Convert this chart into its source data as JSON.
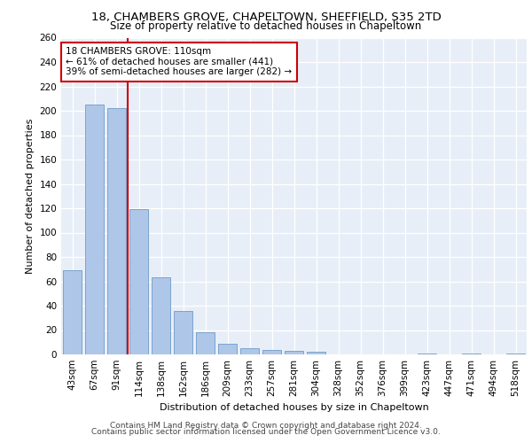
{
  "title_line1": "18, CHAMBERS GROVE, CHAPELTOWN, SHEFFIELD, S35 2TD",
  "title_line2": "Size of property relative to detached houses in Chapeltown",
  "xlabel": "Distribution of detached houses by size in Chapeltown",
  "ylabel": "Number of detached properties",
  "categories": [
    "43sqm",
    "67sqm",
    "91sqm",
    "114sqm",
    "138sqm",
    "162sqm",
    "186sqm",
    "209sqm",
    "233sqm",
    "257sqm",
    "281sqm",
    "304sqm",
    "328sqm",
    "352sqm",
    "376sqm",
    "399sqm",
    "423sqm",
    "447sqm",
    "471sqm",
    "494sqm",
    "518sqm"
  ],
  "values": [
    69,
    205,
    202,
    119,
    63,
    36,
    18,
    9,
    5,
    4,
    3,
    2,
    0,
    0,
    0,
    0,
    1,
    0,
    1,
    0,
    1
  ],
  "bar_color": "#aec6e8",
  "bar_edge_color": "#5a8fc2",
  "vline_x": 2.5,
  "vline_color": "#cc0000",
  "annotation_title": "18 CHAMBERS GROVE: 110sqm",
  "annotation_line1": "← 61% of detached houses are smaller (441)",
  "annotation_line2": "39% of semi-detached houses are larger (282) →",
  "annotation_box_color": "#ffffff",
  "annotation_box_edge": "#cc0000",
  "ylim": [
    0,
    260
  ],
  "yticks": [
    0,
    20,
    40,
    60,
    80,
    100,
    120,
    140,
    160,
    180,
    200,
    220,
    240,
    260
  ],
  "background_color": "#e8eef8",
  "footer_line1": "Contains HM Land Registry data © Crown copyright and database right 2024.",
  "footer_line2": "Contains public sector information licensed under the Open Government Licence v3.0.",
  "title_fontsize": 9.5,
  "subtitle_fontsize": 8.5,
  "axis_label_fontsize": 8,
  "tick_fontsize": 7.5,
  "footer_fontsize": 6.5,
  "annot_fontsize": 7.5
}
